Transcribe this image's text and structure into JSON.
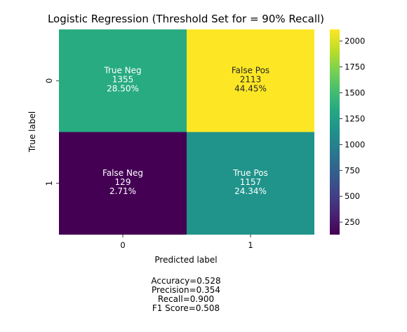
{
  "chart_data": {
    "type": "heatmap",
    "title": "Logistic Regression (Threshold Set for  = 90% Recall)",
    "xlabel": "Predicted label",
    "ylabel": "True label",
    "x_categories": [
      "0",
      "1"
    ],
    "y_categories": [
      "0",
      "1"
    ],
    "cells": [
      [
        {
          "name": "True Neg",
          "count": "1355",
          "percent": "28.50%",
          "value": 1355
        },
        {
          "name": "False Pos",
          "count": "2113",
          "percent": "44.45%",
          "value": 2113
        }
      ],
      [
        {
          "name": "False Neg",
          "count": "129",
          "percent": "2.71%",
          "value": 129
        },
        {
          "name": "True Pos",
          "count": "1157",
          "percent": "24.34%",
          "value": 1157
        }
      ]
    ],
    "colormap": "viridis",
    "colorbar": {
      "vmin": 129,
      "vmax": 2113,
      "ticks": [
        "250",
        "500",
        "750",
        "1000",
        "1250",
        "1500",
        "1750",
        "2000"
      ]
    },
    "metrics": [
      "Accuracy=0.528",
      "Precision=0.354",
      "Recall=0.900",
      "F1 Score=0.508"
    ]
  }
}
